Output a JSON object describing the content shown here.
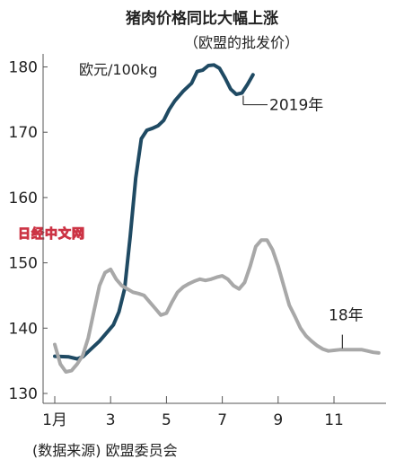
{
  "chart_data": {
    "type": "line",
    "title": "猪肉价格同比大幅上涨",
    "subtitle": "（欧盟的批发价）",
    "unit_label": "欧元/100kg",
    "source": "(数据来源) 欧盟委员会",
    "watermark": "日经中文网",
    "x_ticks": [
      "1月",
      "3",
      "5",
      "7",
      "9",
      "11"
    ],
    "y_ticks": [
      "130",
      "140",
      "150",
      "160",
      "170",
      "180"
    ],
    "xlim": [
      1,
      12.8
    ],
    "ylim": [
      130,
      184
    ],
    "series": [
      {
        "name": "2019年",
        "color": "#1f4a63",
        "x": [
          1,
          1.5,
          1.8,
          2.0,
          2.3,
          2.6,
          2.9,
          3.1,
          3.3,
          3.5,
          3.7,
          3.9,
          4.1,
          4.3,
          4.5,
          4.7,
          4.9,
          5.1,
          5.3,
          5.6,
          5.9,
          6.1,
          6.3,
          6.5,
          6.7,
          6.9,
          7.1,
          7.3,
          7.5,
          7.7,
          7.9,
          8.1
        ],
        "y": [
          135.7,
          135.6,
          135.3,
          135.6,
          136.8,
          138.0,
          139.5,
          140.5,
          142.5,
          146.0,
          154.0,
          163.0,
          169.0,
          170.3,
          170.6,
          171.0,
          171.8,
          173.5,
          174.8,
          176.3,
          177.5,
          179.3,
          179.5,
          180.2,
          180.3,
          179.8,
          178.3,
          176.6,
          175.8,
          176.0,
          177.3,
          178.8
        ]
      },
      {
        "name": "18年",
        "color": "#a8a8a8",
        "x": [
          1,
          1.2,
          1.4,
          1.6,
          1.8,
          2.0,
          2.2,
          2.4,
          2.6,
          2.8,
          3.0,
          3.2,
          3.4,
          3.6,
          3.8,
          4.0,
          4.2,
          4.4,
          4.6,
          4.8,
          5.0,
          5.2,
          5.4,
          5.6,
          5.8,
          6.0,
          6.2,
          6.4,
          6.6,
          6.8,
          7.0,
          7.2,
          7.4,
          7.6,
          7.8,
          8.0,
          8.2,
          8.4,
          8.6,
          8.8,
          9.0,
          9.2,
          9.4,
          9.6,
          9.8,
          10.0,
          10.2,
          10.4,
          10.6,
          10.8,
          11.0,
          11.2,
          11.4,
          11.6,
          11.8,
          12.0,
          12.2,
          12.4,
          12.6
        ],
        "y": [
          137.5,
          134.5,
          133.3,
          133.5,
          134.5,
          135.8,
          138.5,
          142.5,
          146.5,
          148.5,
          149.0,
          147.5,
          146.5,
          146.0,
          145.5,
          145.3,
          145.0,
          144.0,
          143.0,
          142.0,
          142.3,
          144.0,
          145.5,
          146.3,
          146.8,
          147.2,
          147.5,
          147.3,
          147.5,
          147.8,
          148.0,
          147.5,
          146.5,
          146.0,
          147.0,
          149.5,
          152.5,
          153.5,
          153.5,
          152.0,
          149.5,
          146.5,
          143.5,
          141.8,
          140.0,
          138.8,
          138.0,
          137.3,
          136.8,
          136.5,
          136.6,
          136.7,
          136.7,
          136.7,
          136.7,
          136.7,
          136.5,
          136.3,
          136.2
        ]
      }
    ]
  }
}
